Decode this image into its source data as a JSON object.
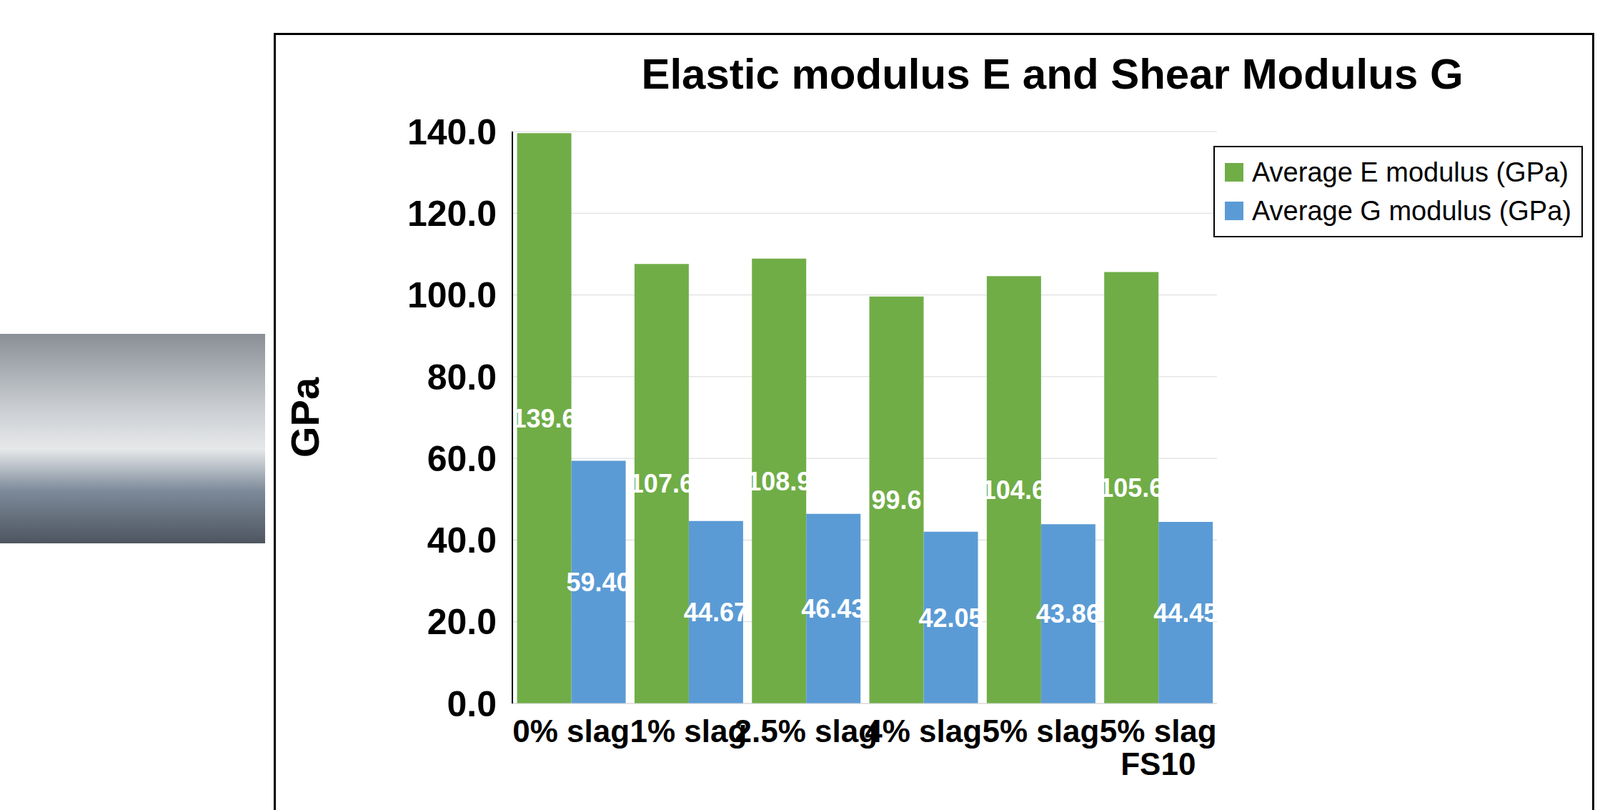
{
  "chart_data": {
    "type": "bar",
    "title": "Elastic modulus E and Shear Modulus G",
    "y_label": "GPa",
    "categories": [
      "0% slag",
      "1% slag",
      "2.5% slag",
      "4% slag",
      "5% slag",
      "5% slag FS10"
    ],
    "series": [
      {
        "name": "Average E modulus (GPa)",
        "color": "#70ad47",
        "values": [
          139.6,
          107.6,
          108.9,
          99.6,
          104.6,
          105.6
        ]
      },
      {
        "name": "Average G modulus (GPa)",
        "color": "#5b9bd5",
        "values": [
          59.4,
          44.67,
          46.43,
          42.05,
          43.86,
          44.45
        ],
        "value_labels": [
          "59.40",
          "44.67",
          "46.43",
          "42.05",
          "43.86",
          "44.45"
        ]
      }
    ],
    "ylim": [
      0,
      140
    ],
    "yticks": [
      {
        "value": 0,
        "label": "0.0"
      },
      {
        "value": 20,
        "label": "20.0"
      },
      {
        "value": 40,
        "label": "40.0"
      },
      {
        "value": 60,
        "label": "60.0"
      },
      {
        "value": 80,
        "label": "80.0"
      },
      {
        "value": 100,
        "label": "100.0"
      },
      {
        "value": 120,
        "label": "120.0"
      },
      {
        "value": 140,
        "label": "140.0"
      }
    ],
    "grid": true,
    "legend": "top-right",
    "data_labels": true
  }
}
